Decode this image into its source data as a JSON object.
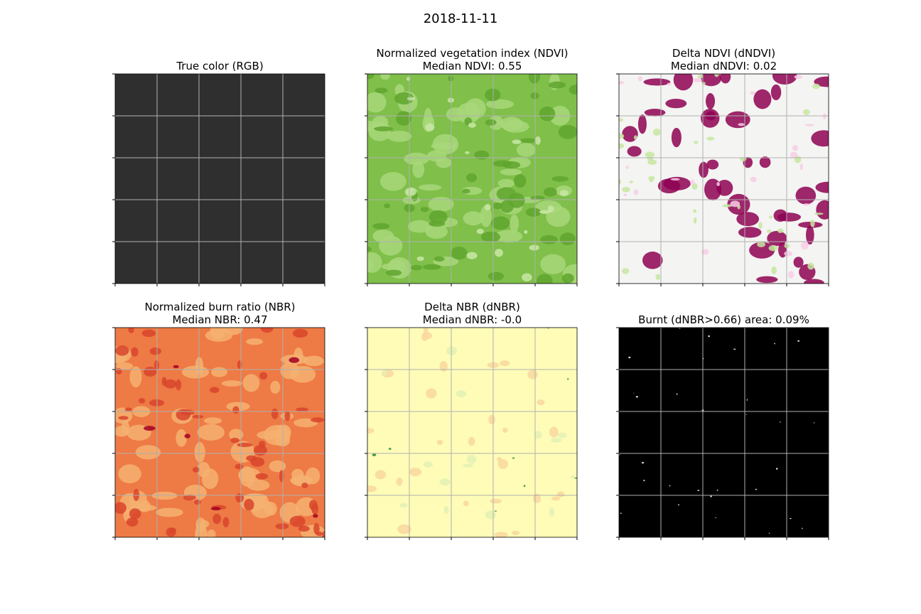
{
  "title": "2018-11-11",
  "panels": [
    {
      "title": "True color (RGB)"
    },
    {
      "title": "Normalized vegetation index (NDVI)",
      "subtitle": "Median NDVI: 0.55"
    },
    {
      "title": "Delta NDVI (dNDVI)",
      "subtitle": "Median dNDVI: 0.02"
    },
    {
      "title": "Normalized burn ratio (NBR)",
      "subtitle": "Median NBR: 0.47"
    },
    {
      "title": "Delta NBR (dNBR)",
      "subtitle": "Median dNBR: -0.0"
    },
    {
      "title": "Burnt (dNBR>0.66) area: 0.09%"
    }
  ]
}
